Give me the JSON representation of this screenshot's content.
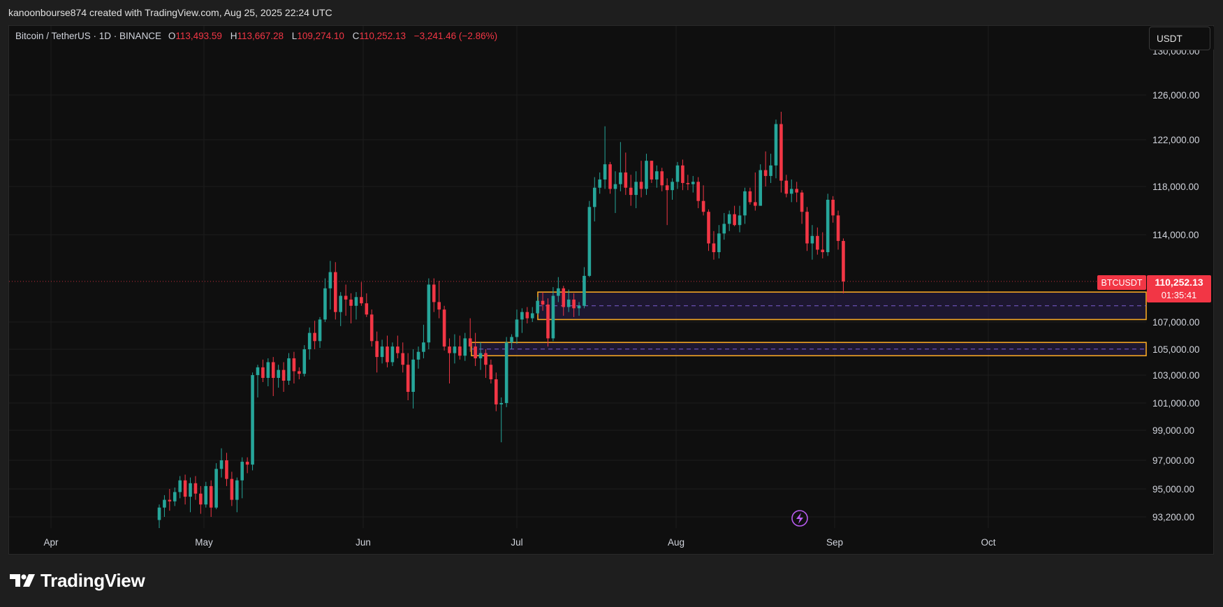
{
  "header": {
    "attribution": "kanoonbourse874 created with TradingView.com, Aug 25, 2025 22:24 UTC"
  },
  "legend": {
    "symbol": "Bitcoin / TetherUS · 1D · BINANCE",
    "open_label": "O",
    "open": "113,493.59",
    "high_label": "H",
    "high": "113,667.28",
    "low_label": "L",
    "low": "109,274.10",
    "close_label": "C",
    "close": "110,252.13",
    "change": "−3,241.46 (−2.86%)"
  },
  "currency_button": "USDT",
  "price_tag": {
    "symbol": "BTCUSDT",
    "price": "110,252.13",
    "countdown": "01:35:41"
  },
  "footer": {
    "logo_text": "TradingView"
  },
  "colors": {
    "up": "#26a69a",
    "down": "#f23645",
    "zone_border": "#f5a623",
    "zone_fill": "#2a1f4d",
    "tag": "#f23645"
  },
  "chart_data": {
    "type": "candlestick",
    "y_ticks": [
      "126,000.00",
      "122,000.00",
      "118,000.00",
      "114,000.00",
      "107,000.00",
      "105,000.00",
      "103,000.00",
      "101,000.00",
      "99,000.00",
      "97,000.00",
      "95,000.00",
      "93,200.00"
    ],
    "y_ticks_partial": "130,000.00",
    "x_labels": [
      "Apr",
      "May",
      "Jun",
      "Jul",
      "Aug",
      "Sep",
      "Oct"
    ],
    "zones": [
      {
        "top": 109400,
        "bottom": 107200
      },
      {
        "top": 105500,
        "bottom": 104500
      }
    ],
    "last_price": 110252.13,
    "candles": [
      [
        93000,
        94000,
        92300,
        93800
      ],
      [
        93800,
        94600,
        93200,
        94300
      ],
      [
        94300,
        95000,
        93600,
        94200
      ],
      [
        94200,
        95100,
        93900,
        94800
      ],
      [
        94800,
        95900,
        94400,
        95600
      ],
      [
        95600,
        96000,
        94000,
        94500
      ],
      [
        94500,
        95800,
        93500,
        95400
      ],
      [
        95400,
        95900,
        94300,
        94700
      ],
      [
        94700,
        95200,
        93400,
        94000
      ],
      [
        94000,
        95500,
        93800,
        95200
      ],
      [
        95200,
        95600,
        93200,
        93800
      ],
      [
        93800,
        96800,
        93700,
        96400
      ],
      [
        96400,
        97800,
        95800,
        97000
      ],
      [
        97000,
        97500,
        95200,
        95700
      ],
      [
        95700,
        96200,
        93900,
        94300
      ],
      [
        94300,
        95800,
        93500,
        95600
      ],
      [
        95600,
        97200,
        94400,
        96900
      ],
      [
        96900,
        97200,
        96100,
        96700
      ],
      [
        96700,
        103200,
        96300,
        103000
      ],
      [
        103000,
        103800,
        101400,
        103600
      ],
      [
        103600,
        104200,
        102500,
        102800
      ],
      [
        102800,
        104300,
        102200,
        104000
      ],
      [
        104000,
        104400,
        101500,
        102800
      ],
      [
        102800,
        103800,
        102100,
        103400
      ],
      [
        103400,
        104000,
        101800,
        102600
      ],
      [
        102600,
        104700,
        102300,
        104300
      ],
      [
        104300,
        104800,
        102400,
        103300
      ],
      [
        103300,
        103600,
        102700,
        103100
      ],
      [
        103100,
        105300,
        102900,
        105000
      ],
      [
        105000,
        106600,
        104200,
        106200
      ],
      [
        106200,
        107100,
        105000,
        105600
      ],
      [
        105600,
        107400,
        105100,
        107200
      ],
      [
        107200,
        110500,
        107000,
        109700
      ],
      [
        109700,
        111900,
        108000,
        111000
      ],
      [
        111000,
        111800,
        107200,
        107800
      ],
      [
        107800,
        109400,
        106700,
        109100
      ],
      [
        109100,
        110000,
        107500,
        108800
      ],
      [
        108800,
        109300,
        106900,
        108300
      ],
      [
        108300,
        109400,
        107200,
        109000
      ],
      [
        109000,
        110200,
        108300,
        108500
      ],
      [
        108500,
        109300,
        107400,
        107600
      ],
      [
        107600,
        108000,
        105200,
        105600
      ],
      [
        105600,
        106300,
        103200,
        104400
      ],
      [
        104400,
        105700,
        103900,
        105200
      ],
      [
        105200,
        106000,
        103600,
        104000
      ],
      [
        104000,
        105500,
        103700,
        105200
      ],
      [
        105200,
        106000,
        104300,
        104700
      ],
      [
        104700,
        105500,
        103200,
        103800
      ],
      [
        103800,
        104700,
        101200,
        101800
      ],
      [
        101800,
        105000,
        100600,
        104200
      ],
      [
        104200,
        105200,
        103500,
        104800
      ],
      [
        104800,
        106800,
        104300,
        105500
      ],
      [
        105500,
        110500,
        105000,
        110000
      ],
      [
        110000,
        110500,
        107800,
        108600
      ],
      [
        108600,
        110300,
        107300,
        108000
      ],
      [
        108000,
        108300,
        104900,
        105200
      ],
      [
        105200,
        105800,
        102400,
        104700
      ],
      [
        104700,
        106100,
        103900,
        105200
      ],
      [
        105200,
        106000,
        104200,
        104500
      ],
      [
        104500,
        106200,
        104100,
        105800
      ],
      [
        105800,
        107300,
        104800,
        105200
      ],
      [
        105200,
        106200,
        103700,
        104300
      ],
      [
        104300,
        105500,
        103400,
        104700
      ],
      [
        104700,
        105000,
        102800,
        103800
      ],
      [
        103800,
        104200,
        102400,
        102700
      ],
      [
        102700,
        103200,
        100400,
        100900
      ],
      [
        100900,
        101400,
        98200,
        101000
      ],
      [
        101000,
        105900,
        100700,
        105500
      ],
      [
        105500,
        106100,
        105000,
        105900
      ],
      [
        105900,
        108000,
        105400,
        107200
      ],
      [
        107200,
        108100,
        106200,
        107800
      ],
      [
        107800,
        108200,
        106900,
        107300
      ],
      [
        107300,
        108200,
        107000,
        107700
      ],
      [
        107700,
        109000,
        107600,
        108700
      ],
      [
        108700,
        109400,
        107900,
        108400
      ],
      [
        108400,
        108900,
        105200,
        105800
      ],
      [
        105800,
        109800,
        105600,
        109100
      ],
      [
        109100,
        110600,
        108600,
        109700
      ],
      [
        109700,
        109900,
        107500,
        108200
      ],
      [
        108200,
        109600,
        107800,
        108800
      ],
      [
        108800,
        109300,
        107400,
        108100
      ],
      [
        108100,
        108600,
        107500,
        108300
      ],
      [
        108300,
        111400,
        108100,
        110700
      ],
      [
        110700,
        116800,
        110600,
        116300
      ],
      [
        116300,
        118800,
        115100,
        117900
      ],
      [
        117900,
        119200,
        117400,
        118600
      ],
      [
        118600,
        123200,
        117800,
        119900
      ],
      [
        119900,
        120100,
        117400,
        117800
      ],
      [
        117800,
        119300,
        115800,
        118200
      ],
      [
        118200,
        121800,
        117600,
        119200
      ],
      [
        119200,
        120900,
        117300,
        117900
      ],
      [
        117900,
        119000,
        116400,
        117300
      ],
      [
        117300,
        119300,
        116200,
        118400
      ],
      [
        118400,
        120200,
        117100,
        117800
      ],
      [
        117800,
        120800,
        117300,
        120200
      ],
      [
        120200,
        120200,
        118300,
        118600
      ],
      [
        118600,
        119800,
        117900,
        119300
      ],
      [
        119300,
        119600,
        117600,
        118100
      ],
      [
        118100,
        118700,
        114800,
        117700
      ],
      [
        117700,
        118700,
        116900,
        118400
      ],
      [
        118400,
        120100,
        117800,
        119800
      ],
      [
        119800,
        120300,
        117700,
        118300
      ],
      [
        118300,
        119000,
        117700,
        118200
      ],
      [
        118200,
        118900,
        117500,
        118400
      ],
      [
        118400,
        118800,
        116200,
        116800
      ],
      [
        116800,
        118100,
        115600,
        115900
      ],
      [
        115900,
        116100,
        112700,
        113300
      ],
      [
        113300,
        114300,
        112000,
        112600
      ],
      [
        112600,
        114800,
        112100,
        114100
      ],
      [
        114100,
        115800,
        113600,
        114900
      ],
      [
        114900,
        116000,
        114300,
        115700
      ],
      [
        115700,
        116400,
        114700,
        114800
      ],
      [
        114800,
        116400,
        114200,
        115600
      ],
      [
        115600,
        117900,
        114900,
        117600
      ],
      [
        117600,
        117900,
        116500,
        116700
      ],
      [
        116700,
        119200,
        116000,
        116400
      ],
      [
        116400,
        119900,
        116400,
        119400
      ],
      [
        119400,
        121000,
        118000,
        118900
      ],
      [
        118900,
        120800,
        118300,
        119800
      ],
      [
        119800,
        123800,
        118700,
        123400
      ],
      [
        123400,
        124500,
        117500,
        118500
      ],
      [
        118500,
        119000,
        117100,
        117400
      ],
      [
        117400,
        118600,
        116700,
        117800
      ],
      [
        117800,
        118400,
        116700,
        117500
      ],
      [
        117500,
        117700,
        114900,
        115900
      ],
      [
        115900,
        116300,
        112700,
        113300
      ],
      [
        113300,
        114800,
        112000,
        113900
      ],
      [
        113900,
        114600,
        112400,
        112800
      ],
      [
        112800,
        114200,
        112100,
        112600
      ],
      [
        112600,
        117400,
        112300,
        116900
      ],
      [
        116900,
        117200,
        115000,
        115600
      ],
      [
        115600,
        116000,
        112800,
        113500
      ],
      [
        113500,
        113700,
        109300,
        110250
      ]
    ]
  }
}
